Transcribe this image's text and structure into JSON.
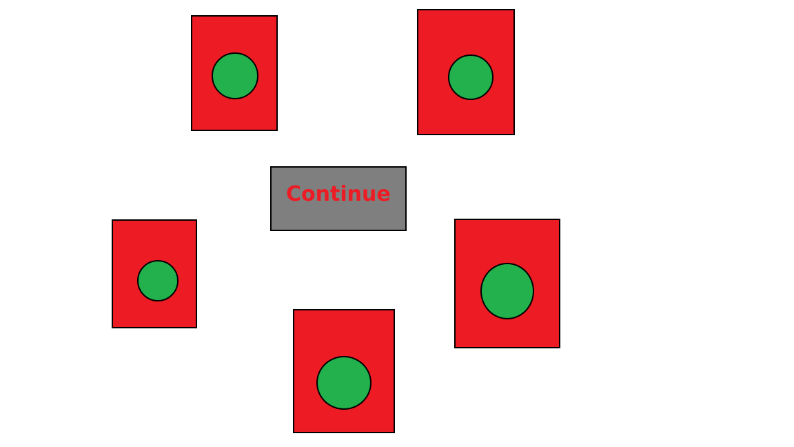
{
  "colors": {
    "background": "#ffffff",
    "card_fill": "#ed1c24",
    "dot_fill": "#22b14c",
    "outline": "#000000",
    "button_fill": "#7f7f7f",
    "button_text": "#ed1c24"
  },
  "cards": [
    {
      "icon": "green-circle-icon"
    },
    {
      "icon": "green-circle-icon"
    },
    {
      "icon": "green-circle-icon"
    },
    {
      "icon": "green-circle-icon"
    },
    {
      "icon": "green-circle-icon"
    }
  ],
  "continue_button": {
    "label": "Continue"
  }
}
